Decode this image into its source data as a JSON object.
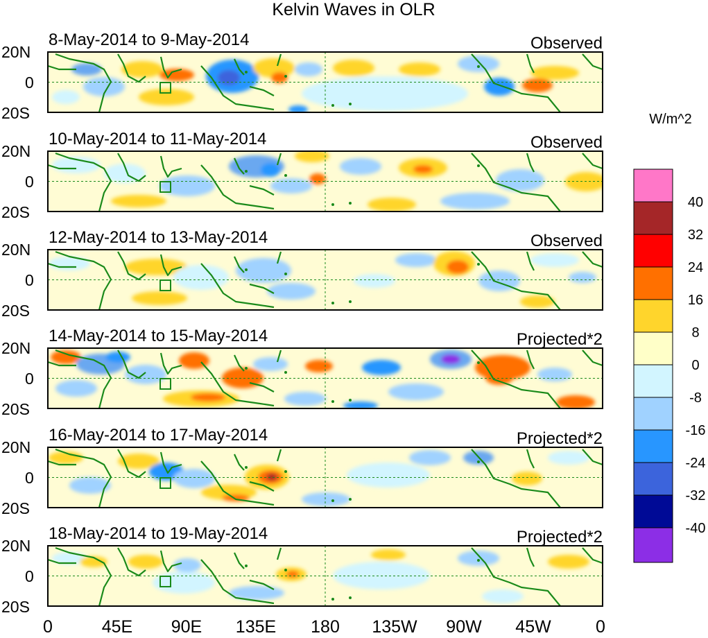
{
  "title": "Kelvin Waves in OLR",
  "units": "W/m^2",
  "lat_labels": [
    "20N",
    "0",
    "20S"
  ],
  "lon_labels": [
    "0",
    "45E",
    "90E",
    "135E",
    "180",
    "135W",
    "90W",
    "45W",
    "0"
  ],
  "panels": [
    {
      "date_range": "8-May-2014 to 9-May-2014",
      "status": "Observed"
    },
    {
      "date_range": "10-May-2014 to 11-May-2014",
      "status": "Observed"
    },
    {
      "date_range": "12-May-2014 to 13-May-2014",
      "status": "Observed"
    },
    {
      "date_range": "14-May-2014 to 15-May-2014",
      "status": "Projected*2"
    },
    {
      "date_range": "16-May-2014 to 17-May-2014",
      "status": "Projected*2"
    },
    {
      "date_range": "18-May-2014 to 19-May-2014",
      "status": "Projected*2"
    }
  ],
  "colorbar": {
    "labels": [
      "40",
      "32",
      "24",
      "16",
      "8",
      "0",
      "-8",
      "-16",
      "-24",
      "-32",
      "-40"
    ],
    "colors": [
      "#ff77c8",
      "#a52628",
      "#ff0000",
      "#ff7000",
      "#ffd52c",
      "#ffffc8",
      "#d2f5ff",
      "#a0d2ff",
      "#2896ff",
      "#3c64dc",
      "#000a96",
      "#8c2ee6"
    ]
  },
  "colors": {
    "background": "#fffcd4",
    "coast": "#1a8a1a",
    "grid": "#1a8a1a"
  }
}
